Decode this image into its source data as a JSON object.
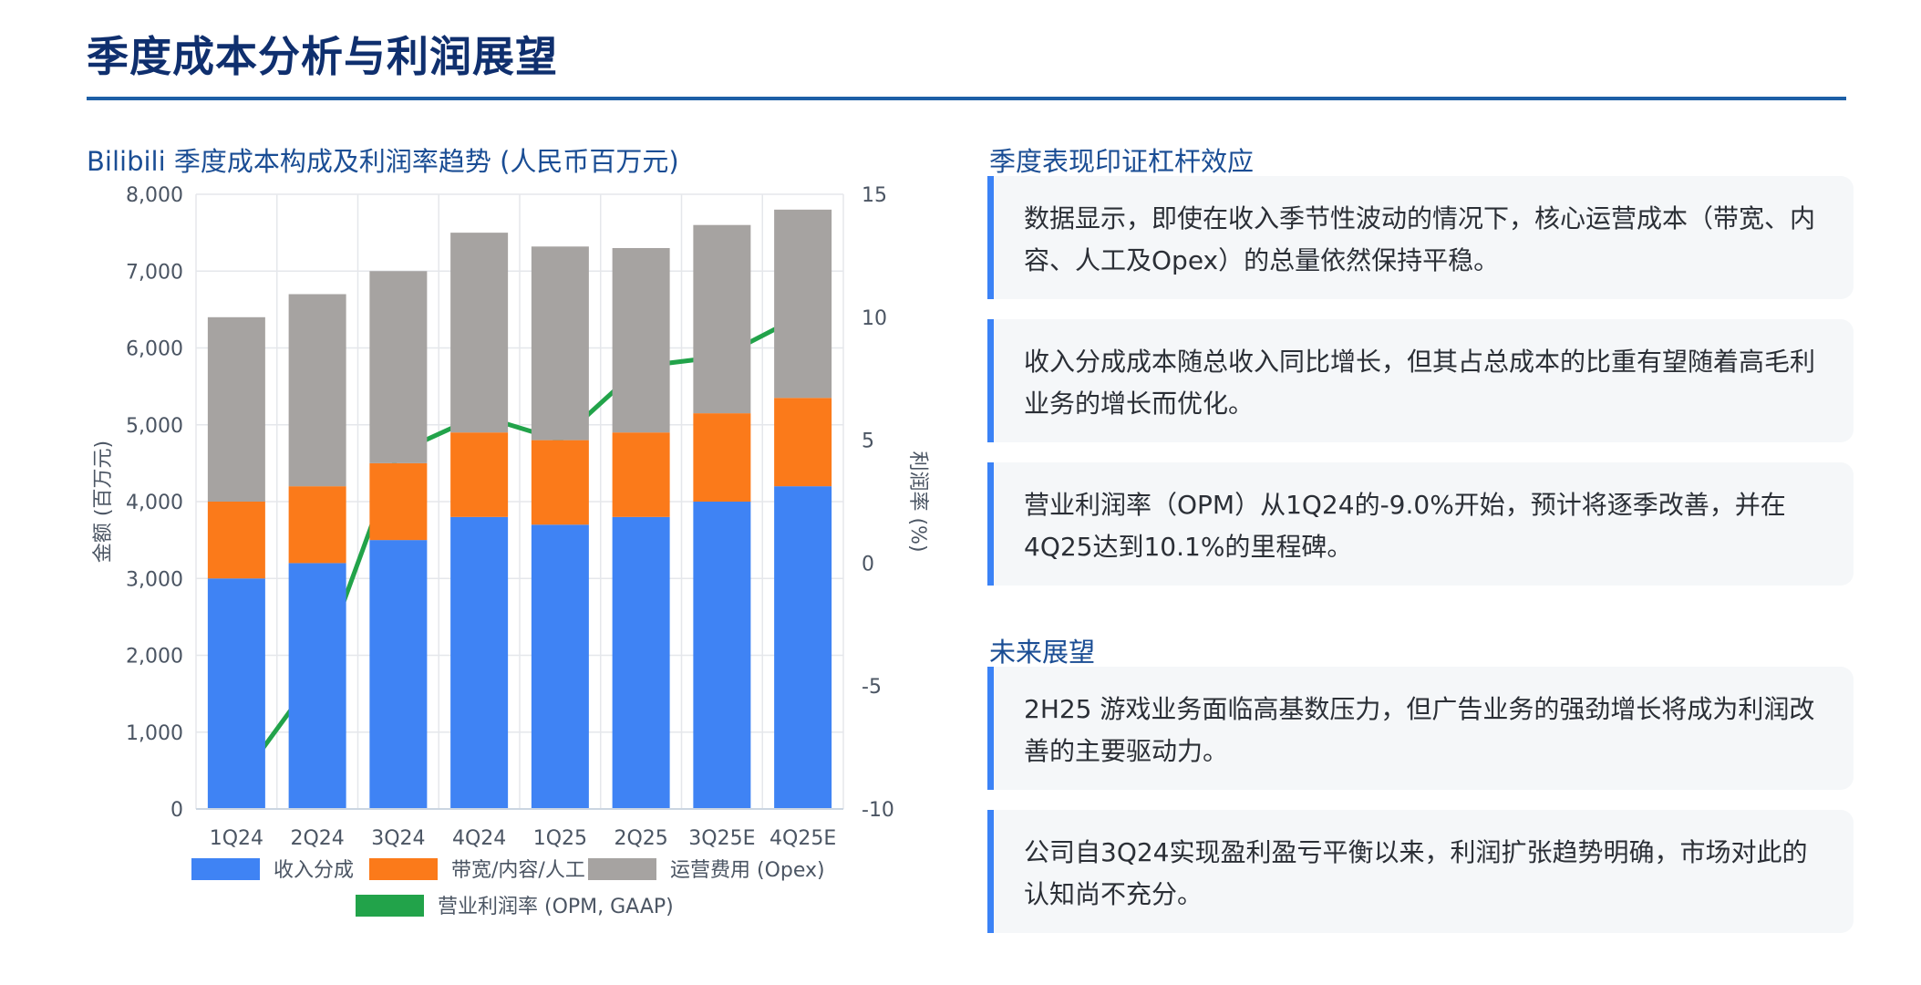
{
  "page": {
    "title": "季度成本分析与利润展望",
    "chart_title": "Bilibili 季度成本构成及利润率趋势 (人民币百万元)"
  },
  "colors": {
    "revenue_share": "#3f83f4",
    "bandwidth_content_labor": "#fb7a1a",
    "opex": "#a6a3a1",
    "opm": "#22a34a",
    "accent": "#3b82f6",
    "title": "#0f2f6e"
  },
  "chart_data": {
    "type": "bar",
    "stacked": true,
    "categories": [
      "1Q24",
      "2Q24",
      "3Q24",
      "4Q24",
      "1Q25",
      "2Q25",
      "3Q25E",
      "4Q25E"
    ],
    "series": [
      {
        "name": "收入分成",
        "values": [
          3000,
          3200,
          3500,
          3800,
          3700,
          3800,
          4000,
          4200
        ]
      },
      {
        "name": "带宽/内容/人工",
        "values": [
          1000,
          1000,
          1000,
          1100,
          1100,
          1100,
          1150,
          1150
        ]
      },
      {
        "name": "运营费用 (Opex)",
        "values": [
          2400,
          2500,
          2500,
          2600,
          2520,
          2400,
          2450,
          2450
        ]
      }
    ],
    "line_series": {
      "name": "营业利润率 (OPM, GAAP)",
      "axis": "right",
      "values": [
        -9.0,
        -4.5,
        4.5,
        6.0,
        5.0,
        8.0,
        8.4,
        10.1
      ]
    },
    "ylabel": "金额 (百万元)",
    "y2label": "利润率 (%)",
    "ylim": [
      0,
      8000
    ],
    "y2lim": [
      -10,
      15
    ],
    "yticks": [
      "0",
      "1,000",
      "2,000",
      "3,000",
      "4,000",
      "5,000",
      "6,000",
      "7,000",
      "8,000"
    ],
    "y2ticks": [
      "-10",
      "-5",
      "0",
      "5",
      "10",
      "15"
    ],
    "grid": true,
    "legend": "bottom"
  },
  "sections": {
    "performance": {
      "title": "季度表现印证杠杆效应",
      "cards": [
        "数据显示，即使在收入季节性波动的情况下，核心运营成本（带宽、内容、人工及Opex）的总量依然保持平稳。",
        "收入分成成本随总收入同比增长，但其占总成本的比重有望随着高毛利业务的增长而优化。",
        "营业利润率（OPM）从1Q24的-9.0%开始，预计将逐季改善，并在4Q25达到10.1%的里程碑。"
      ]
    },
    "outlook": {
      "title": "未来展望",
      "cards": [
        "2H25 游戏业务面临高基数压力，但广告业务的强劲增长将成为利润改善的主要驱动力。",
        "公司自3Q24实现盈利盈亏平衡以来，利润扩张趋势明确，市场对此的认知尚不充分。"
      ]
    }
  }
}
